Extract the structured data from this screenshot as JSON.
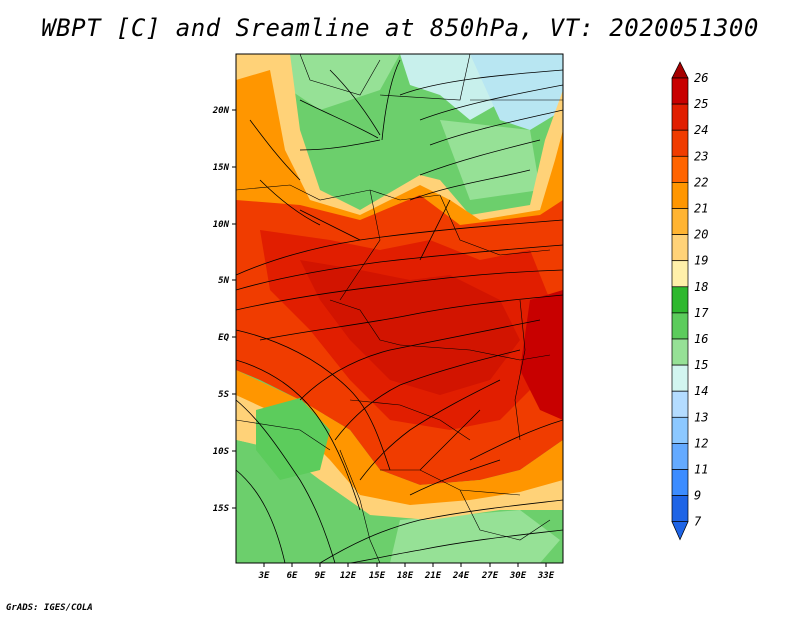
{
  "title": "WBPT [C] and Sreamline at 850hPa, VT: 2020051300",
  "credit": "GrADS: IGES/COLA",
  "axes": {
    "lat_labels": [
      "20N",
      "15N",
      "10N",
      "5N",
      "EQ",
      "5S",
      "10S",
      "15S"
    ],
    "lon_labels": [
      "3E",
      "6E",
      "9E",
      "12E",
      "15E",
      "18E",
      "21E",
      "24E",
      "27E",
      "30E",
      "33E"
    ]
  },
  "colorbar": {
    "labels": [
      "26",
      "25",
      "24",
      "23",
      "22",
      "21",
      "20",
      "19",
      "18",
      "17",
      "16",
      "15",
      "14",
      "13",
      "12",
      "11",
      "9",
      "7"
    ],
    "colors": [
      "#a50000",
      "#c80000",
      "#e11e00",
      "#f03c00",
      "#ff6400",
      "#ff9600",
      "#ffb432",
      "#ffd278",
      "#fff0aa",
      "#2eb82e",
      "#5ccc5c",
      "#96e196",
      "#d2f5f0",
      "#b4dcff",
      "#8cc8ff",
      "#64aaff",
      "#3c8cff",
      "#1e64e6"
    ]
  },
  "icons": {
    "map": "weather-map",
    "colorbar": "color-scale"
  }
}
